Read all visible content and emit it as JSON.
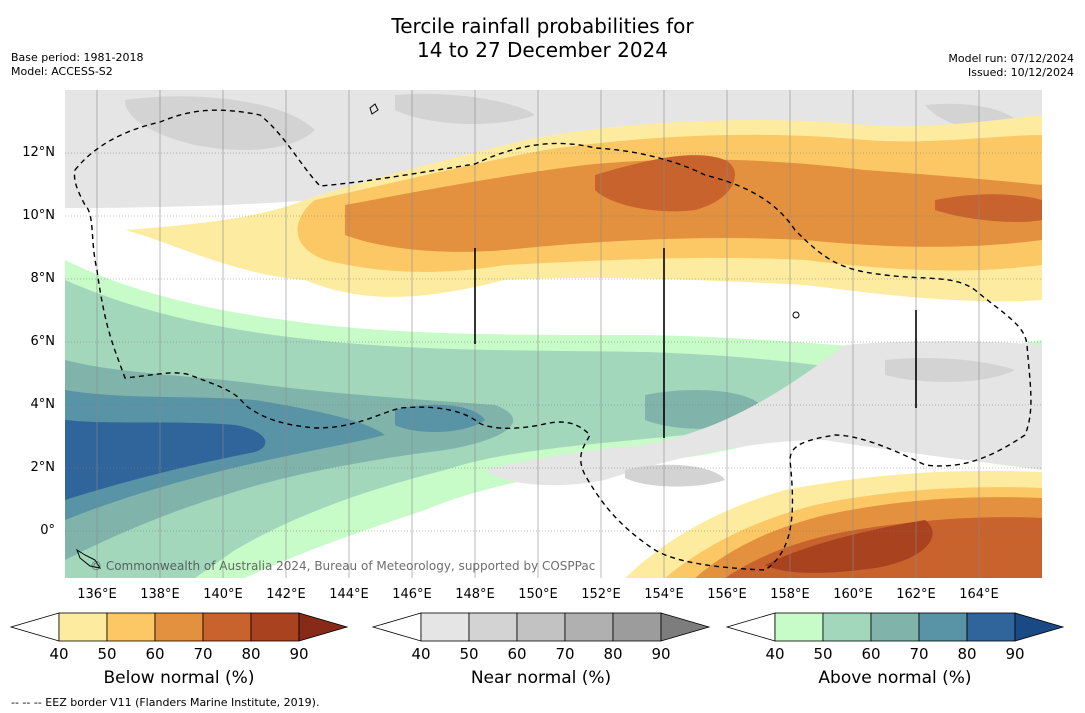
{
  "title": {
    "line1": "Tercile rainfall probabilities for",
    "line2": "14 to 27 December 2024"
  },
  "meta": {
    "base_period": "Base period: 1981-2018",
    "model": "Model: ACCESS-S2",
    "model_run": "Model run: 07/12/2024",
    "issued": "Issued: 10/12/2024"
  },
  "map": {
    "lat_labels": [
      "12°N",
      "10°N",
      "8°N",
      "6°N",
      "4°N",
      "2°N",
      "0°"
    ],
    "lon_labels": [
      "136°E",
      "138°E",
      "140°E",
      "142°E",
      "144°E",
      "146°E",
      "148°E",
      "150°E",
      "152°E",
      "154°E",
      "156°E",
      "158°E",
      "160°E",
      "162°E",
      "164°E"
    ],
    "copyright": "© Commonwealth of Australia 2024, Bureau of Meteorology, supported by COSPPac"
  },
  "colorbars": [
    {
      "title": "Below normal (%)",
      "ticks": [
        "40",
        "50",
        "60",
        "70",
        "80",
        "90"
      ],
      "colors": [
        "#ffffff",
        "#fdeca0",
        "#fcc865",
        "#e3913f",
        "#c8632d",
        "#a8421f",
        "#872a17"
      ]
    },
    {
      "title": "Near normal (%)",
      "ticks": [
        "40",
        "50",
        "60",
        "70",
        "80",
        "90"
      ],
      "colors": [
        "#ffffff",
        "#e5e5e5",
        "#d3d3d3",
        "#c2c2c2",
        "#b0b0b0",
        "#9c9c9c",
        "#7d7d7d"
      ]
    },
    {
      "title": "Above normal (%)",
      "ticks": [
        "40",
        "50",
        "60",
        "70",
        "80",
        "90"
      ],
      "colors": [
        "#ffffff",
        "#c7fbc8",
        "#a2d7bc",
        "#80b4ab",
        "#5893a6",
        "#30659b",
        "#1a4a85"
      ]
    }
  ],
  "footer": "--  --  -- EEZ border V11 (Flanders Marine Institute, 2019)."
}
